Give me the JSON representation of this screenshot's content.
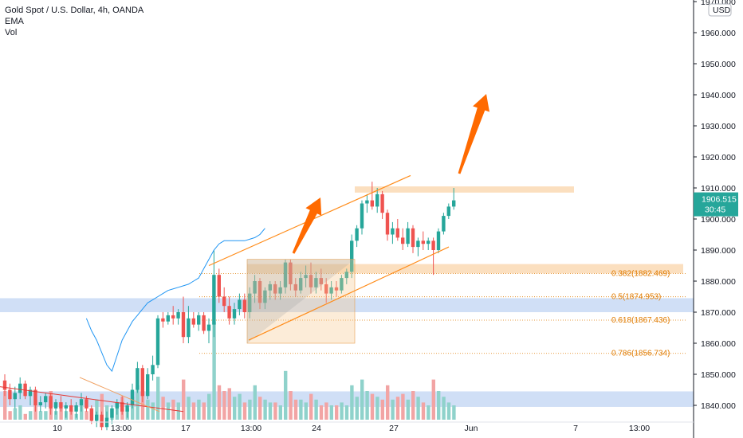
{
  "legend": {
    "title": "Gold Spot / U.S. Dollar, 4h, OANDA",
    "indicator1": "EMA",
    "indicator2": "Vol"
  },
  "price_axis": {
    "currency": "USD",
    "ticks": [
      "1970.000",
      "1960.000",
      "1950.000",
      "1940.000",
      "1930.000",
      "1920.000",
      "1910.000",
      "1900.000",
      "1890.000",
      "1880.000",
      "1870.000",
      "1860.000",
      "1850.000",
      "1840.000"
    ],
    "last_price": "1906.515",
    "countdown": "30:45"
  },
  "time_axis": {
    "ticks": [
      "10",
      "13:00",
      "17",
      "13:00",
      "24",
      "27",
      "Jun",
      "7",
      "13:00"
    ]
  },
  "colors": {
    "up": "#26a69a",
    "down": "#ef5350",
    "vol_up": "#8fd2cb",
    "vol_down": "#f2a4a4",
    "ema": "#2196f3",
    "channel": "#ff8c1a",
    "arrow": "#ff6a00",
    "resistance": "#fad9b4",
    "support": "#c8d9f5",
    "fib": "#e07b00",
    "last_price": "#26a69a"
  },
  "fib_levels": [
    {
      "label": "0.382(1882.469)",
      "price": 1882.469
    },
    {
      "label": "0.5(1874.953)",
      "price": 1874.953
    },
    {
      "label": "0.618(1867.436)",
      "price": 1867.436
    },
    {
      "label": "0.786(1856.734)",
      "price": 1856.734
    }
  ],
  "chart_data": {
    "type": "candlestick",
    "title": "Gold Spot / U.S. Dollar, 4h, OANDA",
    "ylim": [
      1837,
      1971
    ],
    "zones": [
      {
        "name": "resistance",
        "from": 1908.5,
        "to": 1910.5
      },
      {
        "name": "supply",
        "from": 1882.5,
        "to": 1885.5
      },
      {
        "name": "support-upper",
        "from": 1870,
        "to": 1874.5
      },
      {
        "name": "support-lower",
        "from": 1839.5,
        "to": 1844.5
      }
    ],
    "candles": [
      [
        1848,
        1850,
        1843,
        1845,
        "d",
        10
      ],
      [
        1845,
        1847,
        1840,
        1842,
        "d",
        3
      ],
      [
        1842,
        1846,
        1839,
        1844,
        "u",
        4
      ],
      [
        1844,
        1849,
        1842,
        1847,
        "u",
        5
      ],
      [
        1847,
        1848,
        1842,
        1843,
        "d",
        2
      ],
      [
        1843,
        1846,
        1840,
        1845,
        "u",
        3
      ],
      [
        1845,
        1846,
        1838,
        1840,
        "d",
        7
      ],
      [
        1840,
        1843,
        1838,
        1841,
        "u",
        3
      ],
      [
        1841,
        1844,
        1839,
        1843,
        "u",
        3
      ],
      [
        1843,
        1844,
        1837,
        1839,
        "d",
        10
      ],
      [
        1839,
        1842,
        1837,
        1841,
        "u",
        3
      ],
      [
        1841,
        1843,
        1838,
        1839,
        "d",
        4
      ],
      [
        1839,
        1841,
        1836,
        1840,
        "u",
        3
      ],
      [
        1840,
        1842,
        1837,
        1838,
        "d",
        3
      ],
      [
        1838,
        1841,
        1836,
        1840,
        "u",
        2
      ],
      [
        1840,
        1844,
        1838,
        1842,
        "u",
        5
      ],
      [
        1842,
        1843,
        1838,
        1839,
        "d",
        3
      ],
      [
        1839,
        1840,
        1834,
        1835,
        "d",
        4
      ],
      [
        1835,
        1838,
        1833,
        1837,
        "u",
        7
      ],
      [
        1837,
        1838,
        1832,
        1833,
        "d",
        9
      ],
      [
        1833,
        1838,
        1832,
        1836,
        "u",
        5
      ],
      [
        1836,
        1840,
        1834,
        1839,
        "u",
        4
      ],
      [
        1839,
        1842,
        1837,
        1841,
        "u",
        6
      ],
      [
        1841,
        1843,
        1837,
        1838,
        "d",
        8
      ],
      [
        1838,
        1841,
        1836,
        1840,
        "u",
        4
      ],
      [
        1840,
        1847,
        1839,
        1845,
        "u",
        8
      ],
      [
        1845,
        1854,
        1844,
        1852,
        "u",
        12
      ],
      [
        1852,
        1853,
        1841,
        1843,
        "d",
        10
      ],
      [
        1843,
        1852,
        1842,
        1850,
        "u",
        7
      ],
      [
        1850,
        1856,
        1848,
        1853,
        "u",
        6
      ],
      [
        1853,
        1869,
        1852,
        1868,
        "u",
        15
      ],
      [
        1868,
        1870,
        1865,
        1867,
        "d",
        8
      ],
      [
        1867,
        1870,
        1866,
        1869,
        "u",
        6
      ],
      [
        1869,
        1872,
        1866,
        1868,
        "d",
        7
      ],
      [
        1868,
        1871,
        1866,
        1870,
        "u",
        6
      ],
      [
        1870,
        1875,
        1860,
        1862,
        "d",
        14
      ],
      [
        1862,
        1872,
        1860,
        1868,
        "u",
        8
      ],
      [
        1868,
        1870,
        1865,
        1866,
        "d",
        6
      ],
      [
        1866,
        1870,
        1864,
        1869,
        "u",
        7
      ],
      [
        1869,
        1870,
        1863,
        1864,
        "d",
        6
      ],
      [
        1864,
        1868,
        1860,
        1866,
        "u",
        9
      ],
      [
        1866,
        1890,
        1862,
        1882,
        "u",
        34
      ],
      [
        1882,
        1884,
        1873,
        1875,
        "d",
        12
      ],
      [
        1875,
        1878,
        1870,
        1872,
        "d",
        10
      ],
      [
        1872,
        1875,
        1866,
        1868,
        "d",
        11
      ],
      [
        1868,
        1873,
        1866,
        1871,
        "u",
        8
      ],
      [
        1871,
        1876,
        1869,
        1874,
        "u",
        9
      ],
      [
        1874,
        1876,
        1868,
        1870,
        "d",
        6
      ],
      [
        1870,
        1878,
        1868,
        1876,
        "u",
        7
      ],
      [
        1876,
        1882,
        1873,
        1880,
        "u",
        12
      ],
      [
        1880,
        1881,
        1871,
        1873,
        "d",
        8
      ],
      [
        1873,
        1878,
        1871,
        1877,
        "u",
        7
      ],
      [
        1877,
        1880,
        1874,
        1879,
        "u",
        6
      ],
      [
        1879,
        1880,
        1874,
        1876,
        "d",
        6
      ],
      [
        1876,
        1880,
        1874,
        1878,
        "u",
        5
      ],
      [
        1878,
        1887,
        1876,
        1886,
        "u",
        17
      ],
      [
        1886,
        1887,
        1877,
        1879,
        "d",
        10
      ],
      [
        1879,
        1881,
        1875,
        1877,
        "d",
        7
      ],
      [
        1877,
        1883,
        1876,
        1881,
        "u",
        7
      ],
      [
        1881,
        1885,
        1878,
        1882,
        "u",
        6
      ],
      [
        1882,
        1886,
        1876,
        1878,
        "d",
        9
      ],
      [
        1878,
        1883,
        1876,
        1881,
        "u",
        7
      ],
      [
        1881,
        1884,
        1877,
        1879,
        "d",
        5
      ],
      [
        1879,
        1881,
        1873,
        1876,
        "d",
        6
      ],
      [
        1876,
        1880,
        1874,
        1878,
        "u",
        5
      ],
      [
        1878,
        1880,
        1875,
        1877,
        "d",
        5
      ],
      [
        1877,
        1882,
        1876,
        1881,
        "u",
        6
      ],
      [
        1881,
        1884,
        1879,
        1883,
        "u",
        5
      ],
      [
        1883,
        1895,
        1881,
        1893,
        "u",
        12
      ],
      [
        1893,
        1898,
        1891,
        1897,
        "u",
        8
      ],
      [
        1897,
        1906,
        1895,
        1905,
        "u",
        14
      ],
      [
        1905,
        1908,
        1902,
        1906,
        "u",
        10
      ],
      [
        1906,
        1912,
        1903,
        1904,
        "d",
        9
      ],
      [
        1904,
        1910,
        1902,
        1908,
        "u",
        8
      ],
      [
        1908,
        1909,
        1900,
        1902,
        "d",
        7
      ],
      [
        1902,
        1903,
        1893,
        1895,
        "d",
        12
      ],
      [
        1895,
        1899,
        1892,
        1897,
        "u",
        7
      ],
      [
        1897,
        1900,
        1893,
        1894,
        "d",
        8
      ],
      [
        1894,
        1897,
        1890,
        1892,
        "d",
        9
      ],
      [
        1892,
        1899,
        1891,
        1897,
        "u",
        7
      ],
      [
        1897,
        1898,
        1889,
        1891,
        "d",
        10
      ],
      [
        1891,
        1894,
        1888,
        1893,
        "u",
        8
      ],
      [
        1893,
        1896,
        1890,
        1892,
        "d",
        6
      ],
      [
        1892,
        1894,
        1890,
        1893,
        "u",
        5
      ],
      [
        1893,
        1894,
        1882,
        1890,
        "d",
        14
      ],
      [
        1890,
        1897,
        1889,
        1896,
        "u",
        10
      ],
      [
        1896,
        1902,
        1895,
        1901,
        "u",
        8
      ],
      [
        1901,
        1905,
        1900,
        1904,
        "u",
        6
      ],
      [
        1904,
        1910,
        1903,
        1906,
        "u",
        5
      ]
    ],
    "ema": [
      1868,
      1864,
      1861,
      1857,
      1853,
      1851,
      1856,
      1861,
      1864,
      1867,
      1869,
      1871,
      1873,
      1874,
      1875,
      1876,
      1877,
      1877.5,
      1878,
      1878.5,
      1879,
      1880,
      1881,
      1884,
      1887,
      1890,
      1892,
      1893,
      1893,
      1893,
      1893,
      1893,
      1893.5,
      1894,
      1895,
      1897
    ],
    "ema_start_index": 52
  }
}
